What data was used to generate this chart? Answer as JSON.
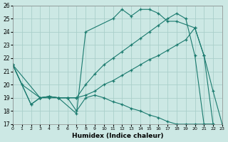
{
  "bg_color": "#cce8e4",
  "grid_color": "#aacfca",
  "line_color": "#1a7a6e",
  "xlim": [
    0,
    23
  ],
  "ylim": [
    17,
    26
  ],
  "yticks": [
    17,
    18,
    19,
    20,
    21,
    22,
    23,
    24,
    25,
    26
  ],
  "xticks": [
    0,
    1,
    2,
    3,
    4,
    5,
    6,
    7,
    8,
    9,
    10,
    11,
    12,
    13,
    14,
    15,
    16,
    17,
    18,
    19,
    20,
    21,
    22,
    23
  ],
  "xlabel": "Humidex (Indice chaleur)",
  "series": [
    {
      "x": [
        0,
        1,
        3,
        4,
        5,
        7,
        8,
        11,
        12,
        13,
        14,
        15,
        16,
        17,
        18,
        20,
        21,
        22,
        23
      ],
      "y": [
        21.5,
        20.0,
        19.0,
        19.1,
        19.0,
        17.8,
        24.0,
        25.0,
        25.7,
        25.2,
        25.7,
        25.7,
        25.4,
        24.8,
        24.8,
        24.3,
        22.2,
        19.5,
        17.0
      ]
    },
    {
      "x": [
        0,
        3,
        4,
        5,
        6,
        7,
        8,
        9,
        10,
        11,
        12,
        13,
        14,
        15,
        16,
        17,
        18,
        19,
        20,
        21,
        22,
        23
      ],
      "y": [
        21.5,
        19.0,
        19.1,
        19.0,
        19.0,
        19.0,
        19.2,
        19.5,
        20.0,
        20.3,
        20.7,
        21.1,
        21.5,
        21.9,
        22.2,
        22.6,
        23.0,
        23.4,
        24.3,
        22.2,
        17.0,
        16.8
      ]
    },
    {
      "x": [
        0,
        2,
        3,
        4,
        5,
        6,
        7,
        8,
        9,
        10,
        11,
        12,
        13,
        14,
        15,
        16,
        17,
        18,
        19,
        20,
        21,
        22,
        23
      ],
      "y": [
        21.5,
        18.5,
        19.0,
        19.1,
        19.0,
        19.0,
        19.0,
        20.0,
        20.8,
        21.5,
        22.0,
        22.5,
        23.0,
        23.5,
        24.0,
        24.5,
        25.0,
        25.4,
        25.0,
        22.2,
        17.0,
        17.0,
        16.8
      ]
    },
    {
      "x": [
        0,
        2,
        3,
        4,
        5,
        6,
        7,
        8,
        9,
        10,
        11,
        12,
        13,
        14,
        15,
        16,
        17,
        18,
        19,
        20,
        21,
        22,
        23
      ],
      "y": [
        21.5,
        18.5,
        19.0,
        19.0,
        19.0,
        19.0,
        18.0,
        19.0,
        19.2,
        19.0,
        18.7,
        18.5,
        18.2,
        18.0,
        17.7,
        17.5,
        17.2,
        17.0,
        17.0,
        17.0,
        17.0,
        17.0,
        16.8
      ]
    }
  ]
}
